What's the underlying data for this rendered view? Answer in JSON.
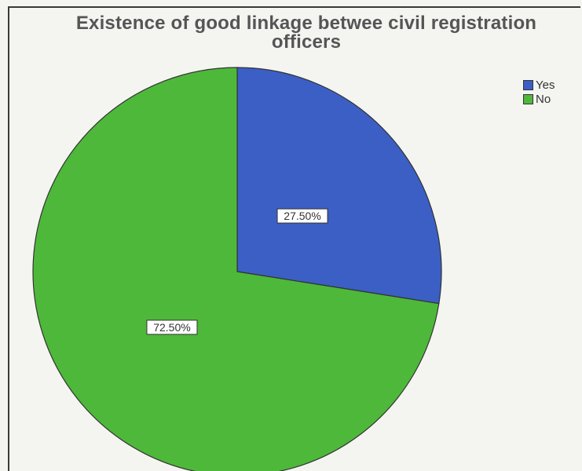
{
  "chart_data": {
    "type": "pie",
    "title": "Existence of good linkage betwee civil registration officers",
    "title_lines": [
      "Existence of good linkage betwee civil registration",
      "officers"
    ],
    "slices": [
      {
        "label": "Yes",
        "value": 27.5,
        "data_label": "27.50%",
        "color": "#3b5fc4"
      },
      {
        "label": "No",
        "value": 72.5,
        "data_label": "72.50%",
        "color": "#4eb83a"
      }
    ],
    "legend": {
      "placement": "top-right",
      "entries": [
        "Yes",
        "No"
      ]
    }
  }
}
